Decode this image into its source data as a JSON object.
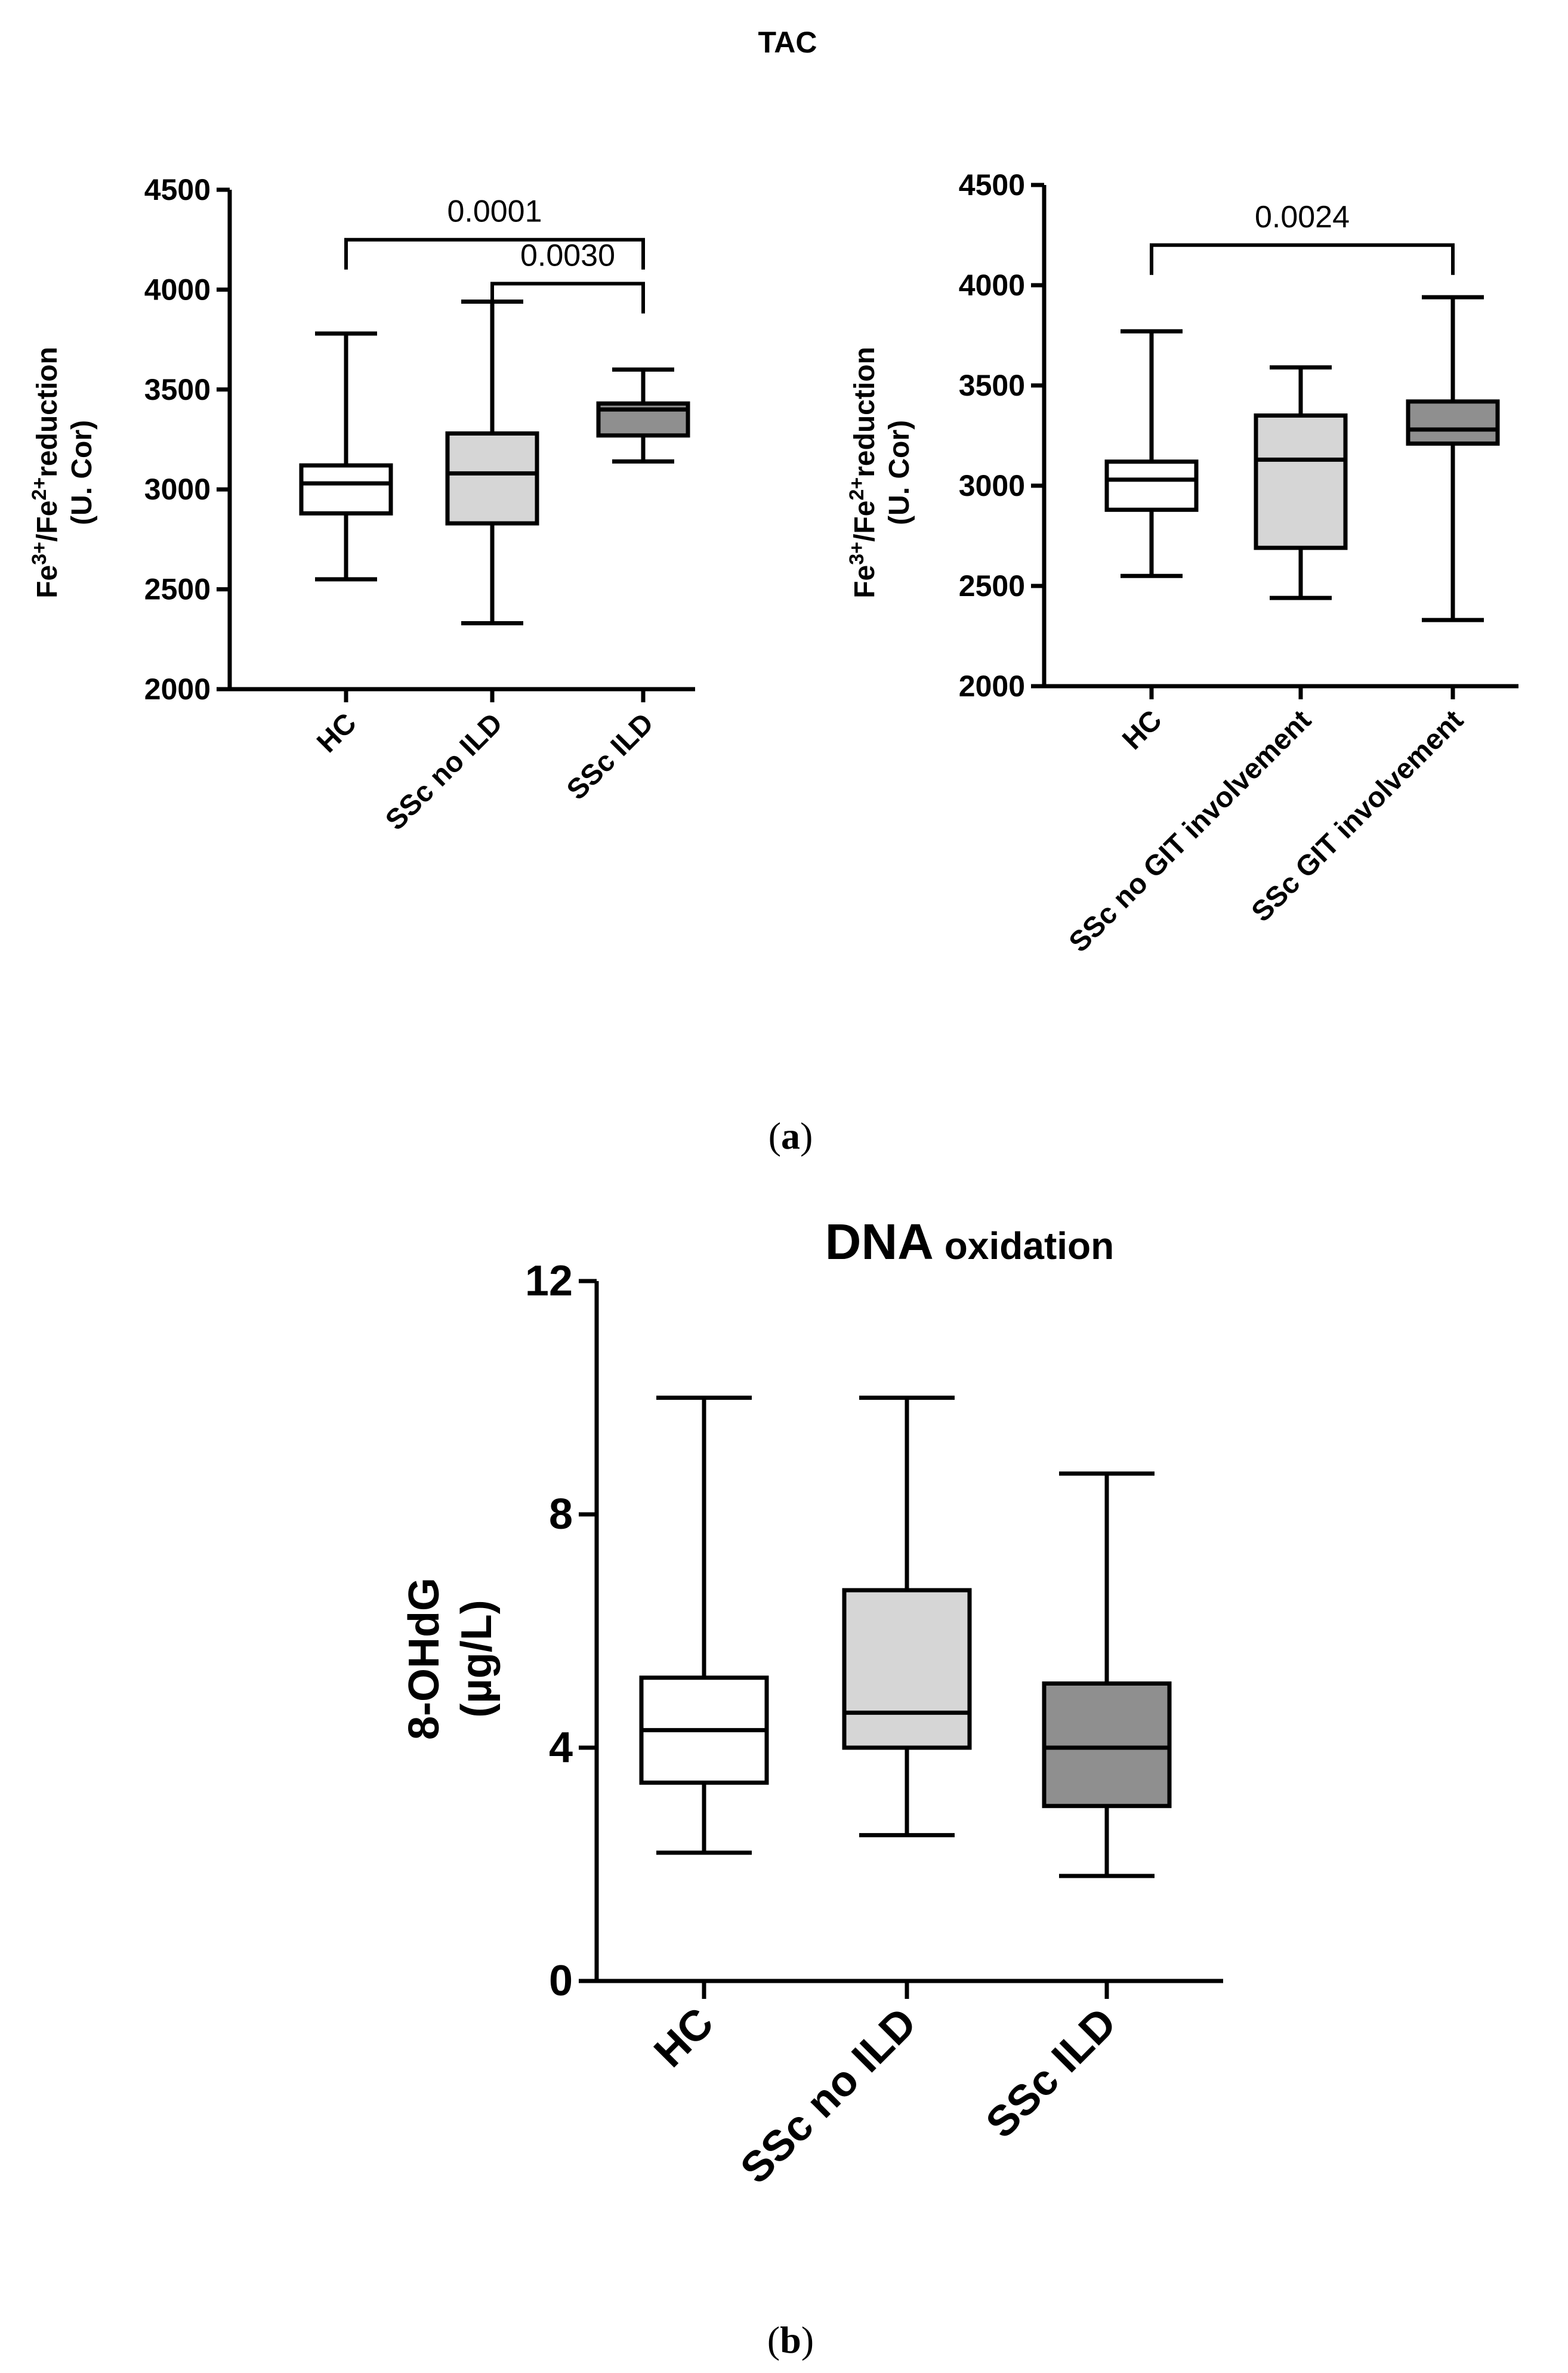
{
  "colors": {
    "white_fill": "#ffffff",
    "light_gray_fill": "#d6d6d6",
    "dark_gray_fill": "#8f8f8f",
    "ink": "#000000"
  },
  "chart_data": [
    {
      "type": "box",
      "panel": "a-left",
      "title": "TAC",
      "ylabel_line1": {
        "base1": "Fe",
        "sup1": "3+",
        "mid": "/Fe",
        "sup2": "2+",
        "tail": "reduction"
      },
      "ylabel_line2": "(U. Cor)",
      "ylim": [
        2000,
        4500
      ],
      "yticks": [
        2000,
        2500,
        3000,
        3500,
        4000,
        4500
      ],
      "categories": [
        "HC",
        "SSc no ILD",
        "SSc ILD"
      ],
      "boxes": [
        {
          "min": 2550,
          "q1": 2880,
          "median": 3030,
          "q3": 3120,
          "max": 3780,
          "fill": "white_fill"
        },
        {
          "min": 2330,
          "q1": 2830,
          "median": 3080,
          "q3": 3280,
          "max": 3940,
          "fill": "light_gray_fill"
        },
        {
          "min": 3140,
          "q1": 3270,
          "median": 3400,
          "q3": 3430,
          "max": 3600,
          "fill": "dark_gray_fill"
        }
      ],
      "comparisons": [
        {
          "from": 0,
          "to": 2,
          "p": "0.0001",
          "level": 4250
        },
        {
          "from": 1,
          "to": 2,
          "p": "0.0030",
          "level": 4030
        }
      ]
    },
    {
      "type": "box",
      "panel": "a-right",
      "ylabel_line1": {
        "base1": "Fe",
        "sup1": "3+",
        "mid": "/Fe",
        "sup2": "2+",
        "tail": "reduction"
      },
      "ylabel_line2": "(U. Cor)",
      "ylim": [
        2000,
        4500
      ],
      "yticks": [
        2000,
        2500,
        3000,
        3500,
        4000,
        4500
      ],
      "categories": [
        "HC",
        "SSc no GIT involvement",
        "SSc GIT involvement"
      ],
      "boxes": [
        {
          "min": 2550,
          "q1": 2880,
          "median": 3030,
          "q3": 3120,
          "max": 3770,
          "fill": "white_fill"
        },
        {
          "min": 2440,
          "q1": 2690,
          "median": 3130,
          "q3": 3350,
          "max": 3590,
          "fill": "light_gray_fill"
        },
        {
          "min": 2330,
          "q1": 3210,
          "median": 3280,
          "q3": 3420,
          "max": 3940,
          "fill": "dark_gray_fill"
        }
      ],
      "comparisons": [
        {
          "from": 0,
          "to": 2,
          "p": "0.0024",
          "level": 4200
        }
      ]
    },
    {
      "type": "box",
      "panel": "b",
      "title_main": "DNA",
      "title_sub": "oxidation",
      "ylabel_line1": "8-OHdG",
      "ylabel_line2": "(µg/L)",
      "ylim": [
        0,
        12
      ],
      "yticks": [
        0,
        4,
        8,
        12
      ],
      "categories": [
        "HC",
        "SSc no ILD",
        "SSc ILD"
      ],
      "boxes": [
        {
          "min": 2.2,
          "q1": 3.4,
          "median": 4.3,
          "q3": 5.2,
          "max": 10.0,
          "fill": "white_fill"
        },
        {
          "min": 2.5,
          "q1": 4.0,
          "median": 4.6,
          "q3": 6.7,
          "max": 10.0,
          "fill": "light_gray_fill"
        },
        {
          "min": 1.8,
          "q1": 3.0,
          "median": 4.0,
          "q3": 5.1,
          "max": 8.7,
          "fill": "dark_gray_fill"
        }
      ],
      "comparisons": []
    }
  ],
  "captions": {
    "a": {
      "open": "(",
      "letter": "a",
      "close": ")"
    },
    "b": {
      "open": "(",
      "letter": "b",
      "close": ")"
    }
  }
}
